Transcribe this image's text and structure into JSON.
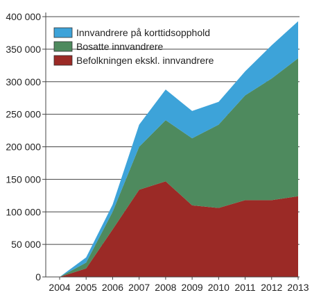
{
  "chart_data": {
    "type": "area",
    "stacked": true,
    "x": [
      "2004",
      "2005",
      "2006",
      "2007",
      "2008",
      "2009",
      "2010",
      "2011",
      "2012",
      "2013"
    ],
    "ylim": [
      0,
      400000
    ],
    "yticks": [
      0,
      50000,
      100000,
      150000,
      200000,
      250000,
      300000,
      350000,
      400000
    ],
    "ytick_labels": [
      "0",
      "50 000",
      "100 000",
      "150 000",
      "200 000",
      "250 000",
      "300 000",
      "350 000",
      "400 000"
    ],
    "grid": "horizontal",
    "legend_position": "top-left",
    "series": [
      {
        "name": "Befolkningen ekskl. innvandrere",
        "color": "#9b2a26",
        "values": [
          0,
          13000,
          73000,
          134000,
          147000,
          110000,
          106000,
          118000,
          118000,
          124000
        ]
      },
      {
        "name": "Bosatte innvandrere",
        "color": "#4e8a5e",
        "values": [
          0,
          9000,
          27000,
          66000,
          94000,
          103000,
          128000,
          161000,
          187000,
          212000
        ]
      },
      {
        "name": "Innvandrere på korttidsopphold",
        "color": "#3da3d9",
        "values": [
          0,
          8000,
          11000,
          34000,
          47000,
          42000,
          35000,
          37000,
          51000,
          57000
        ]
      }
    ],
    "legend_order": [
      "Innvandrere på korttidsopphold",
      "Bosatte innvandrere",
      "Befolkningen ekskl. innvandrere"
    ]
  }
}
